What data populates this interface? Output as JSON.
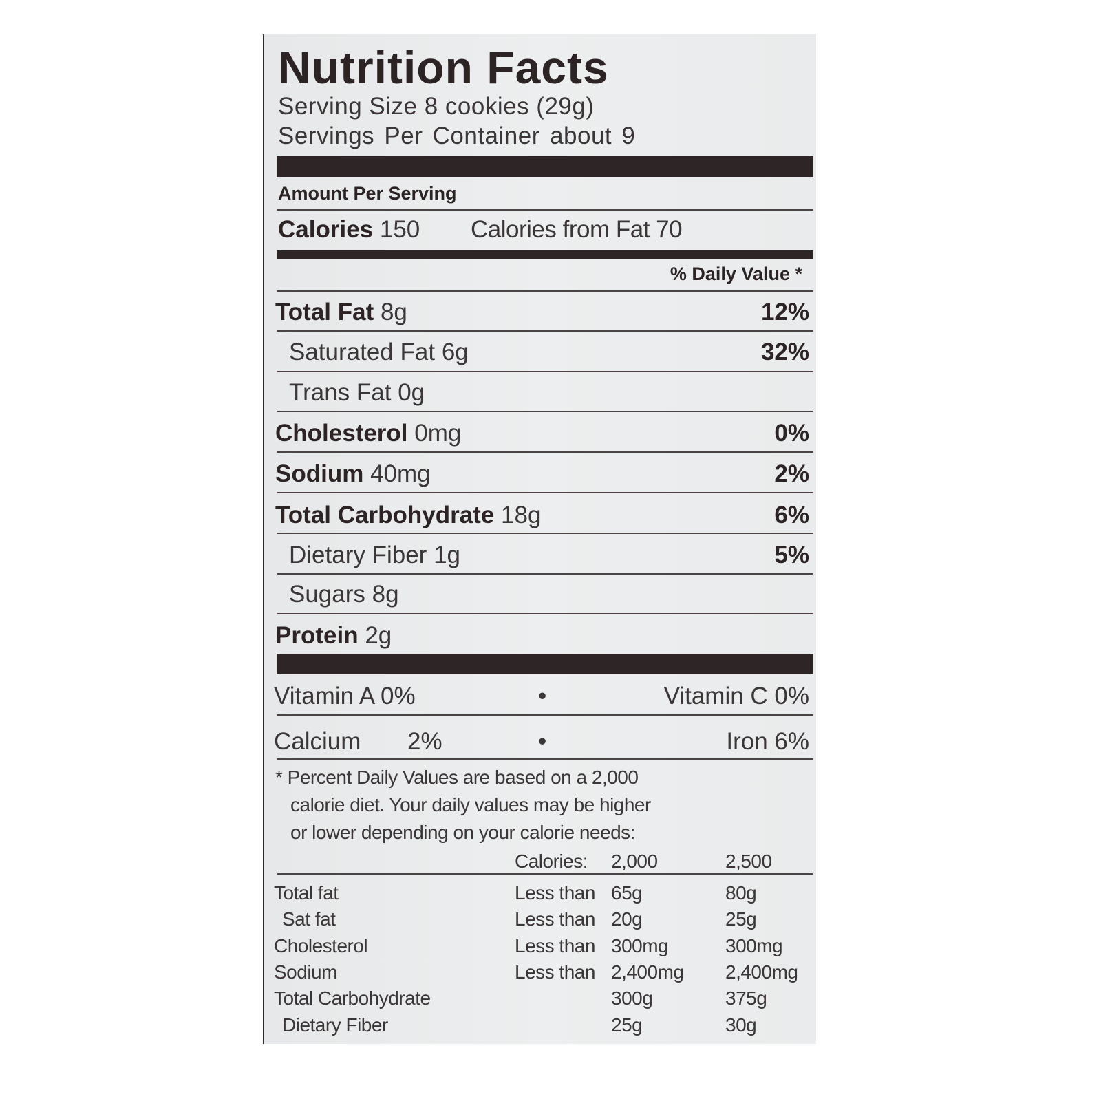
{
  "title": "Nutrition Facts",
  "serving_size": "Serving Size 8 cookies (29g)",
  "servings_per_container": "Servings  Per  Container  about  9",
  "amount_per_serving": "Amount Per Serving",
  "calories": {
    "label": "Calories",
    "value": "150",
    "from_fat": "Calories from Fat 70"
  },
  "daily_value_header": "% Daily Value *",
  "nutrients": [
    {
      "label": "Total Fat",
      "amount": "8g",
      "dv": "12%"
    },
    {
      "label": "Saturated Fat",
      "amount": "6g",
      "dv": "32%"
    },
    {
      "label": "Trans Fat",
      "amount": "0g",
      "dv": ""
    },
    {
      "label": "Cholesterol",
      "amount": "0mg",
      "dv": "0%"
    },
    {
      "label": "Sodium",
      "amount": "40mg",
      "dv": "2%"
    },
    {
      "label": "Total Carbohydrate",
      "amount": "18g",
      "dv": "6%"
    },
    {
      "label": "Dietary Fiber",
      "amount": "1g",
      "dv": "5%"
    },
    {
      "label": "Sugars",
      "amount": "8g",
      "dv": ""
    },
    {
      "label": "Protein",
      "amount": "2g",
      "dv": ""
    }
  ],
  "vitamins": {
    "vitamin_a": "Vitamin A  0%",
    "vitamin_c": "Vitamin C  0%",
    "calcium": "Calcium",
    "calcium_value": "2%",
    "iron": "Iron  6%",
    "bullet": "•"
  },
  "footnote": [
    "* Percent Daily Values are based on a 2,000",
    "calorie diet. Your daily values may be higher",
    "or lower depending on your calorie needs:"
  ],
  "reference_table": {
    "header": {
      "label": "Calories:",
      "col1": "2,000",
      "col2": "2,500"
    },
    "rows": [
      {
        "nutrient": "Total fat",
        "qualifier": "Less than",
        "col1": "65g",
        "col2": "80g"
      },
      {
        "nutrient": "Sat fat",
        "qualifier": "Less than",
        "col1": "20g",
        "col2": "25g"
      },
      {
        "nutrient": "Cholesterol",
        "qualifier": "Less than",
        "col1": "300mg",
        "col2": "300mg"
      },
      {
        "nutrient": "Sodium",
        "qualifier": "Less than",
        "col1": "2,400mg",
        "col2": "2,400mg"
      },
      {
        "nutrient": "Total Carbohydrate",
        "qualifier": "",
        "col1": "300g",
        "col2": "375g"
      },
      {
        "nutrient": "Dietary Fiber",
        "qualifier": "",
        "col1": "25g",
        "col2": "30g"
      }
    ]
  }
}
